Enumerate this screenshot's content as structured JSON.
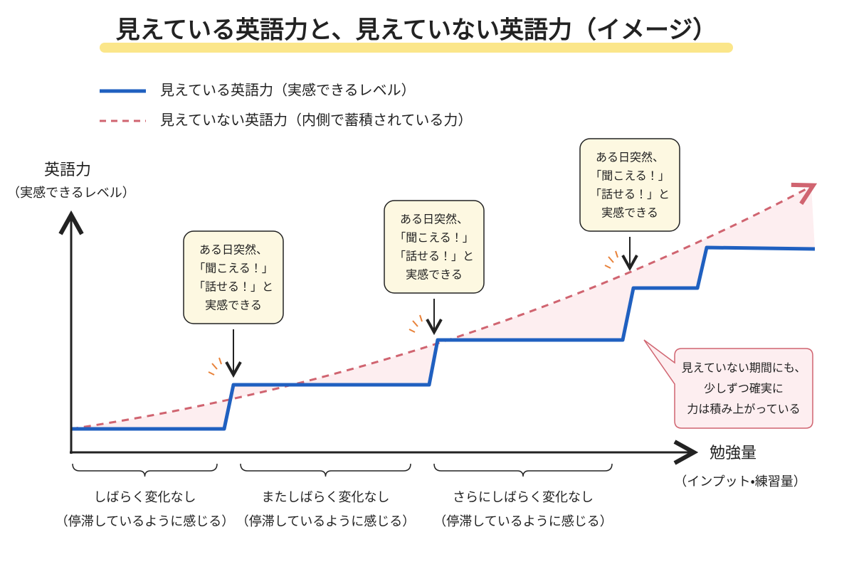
{
  "title": "見えている英語力と、見えていない英語力（イメージ）",
  "legend": [
    {
      "label": "見えている英語力（実感できるレベル）"
    },
    {
      "label": "見えていない英語力（内側で蓄積されている力）"
    }
  ],
  "y_axis": {
    "label": "英語力",
    "sublabel": "（実感できるレベル）"
  },
  "x_axis": {
    "label": "勉強量",
    "sublabel": "（インプット・練習量）"
  },
  "callouts": [
    {
      "lines": [
        "ある日突然、",
        "「聞こえる！」",
        "「話せる！」と",
        "実感できる"
      ]
    },
    {
      "lines": [
        "ある日突然、",
        "「聞こえる！」",
        "「話せる！」と",
        "実感できる"
      ]
    },
    {
      "lines": [
        "ある日突然、",
        "「聞こえる！」",
        "「話せる！」と",
        "実感できる"
      ]
    }
  ],
  "note": {
    "lines": [
      "見えていない期間にも、",
      "少しずつ確実に",
      "力は積み上がっている"
    ]
  },
  "phases": [
    {
      "label": "しばらく変化なし",
      "sublabel": "（停滞しているように感じる）"
    },
    {
      "label": "またしばらく変化なし",
      "sublabel": "（停滞しているように感じる）"
    },
    {
      "label": "さらにしばらく変化なし",
      "sublabel": "（停滞しているように感じる）"
    }
  ]
}
